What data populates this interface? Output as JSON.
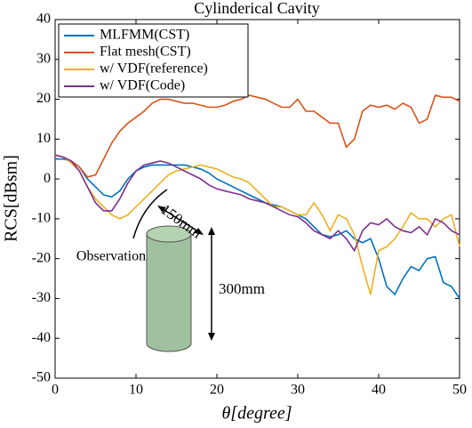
{
  "chart_data": {
    "type": "line",
    "title": "Cylinderical Cavity",
    "x_label": "θ[degree]",
    "y_label": "RCS[dBsm]",
    "x": [
      0,
      1,
      2,
      3,
      4,
      5,
      6,
      7,
      8,
      9,
      10,
      11,
      12,
      13,
      14,
      15,
      16,
      17,
      18,
      19,
      20,
      21,
      22,
      23,
      24,
      25,
      26,
      27,
      28,
      29,
      30,
      31,
      32,
      33,
      34,
      35,
      36,
      37,
      38,
      39,
      40,
      41,
      42,
      43,
      44,
      45,
      46,
      47,
      48,
      49,
      50
    ],
    "xlim": [
      0,
      50
    ],
    "xticks": [
      0,
      10,
      20,
      30,
      40,
      50
    ],
    "ylim": [
      -50,
      40
    ],
    "yticks": [
      -50,
      -40,
      -30,
      -20,
      -10,
      0,
      10,
      20,
      30,
      40
    ],
    "grid": false,
    "legend": "upper-left",
    "series": [
      {
        "name": "MLFMM(CST)",
        "color": "#0072bd",
        "values": [
          5,
          5,
          4.5,
          3,
          0,
          -2,
          -4,
          -4.5,
          -3,
          0,
          2,
          3,
          3.5,
          3.5,
          3.5,
          3.5,
          3.5,
          3,
          2.5,
          1.5,
          0,
          -1,
          -2,
          -3,
          -4,
          -5,
          -6,
          -6.5,
          -7,
          -8,
          -9,
          -10,
          -12,
          -14,
          -14.5,
          -14,
          -13,
          -15,
          -16,
          -15,
          -20,
          -27,
          -29,
          -25,
          -22,
          -23,
          -20,
          -19.5,
          -26,
          -27,
          -30
        ]
      },
      {
        "name": "Flat mesh(CST)",
        "color": "#d95319",
        "values": [
          6,
          5.5,
          4.5,
          3,
          0.5,
          1,
          5,
          9,
          12,
          14,
          15.5,
          17,
          19,
          20,
          20,
          19.5,
          19,
          19,
          18.5,
          18,
          18,
          18.5,
          19.5,
          20,
          21,
          20.5,
          20,
          19,
          18,
          18,
          20,
          17,
          17,
          15.5,
          14,
          14,
          8,
          10,
          17,
          18.5,
          18,
          18.5,
          17.5,
          19,
          18,
          14,
          15,
          21,
          20.5,
          20.5,
          19.5
        ]
      },
      {
        "name": "w/ VDF(reference)",
        "color": "#edb120",
        "values": [
          6,
          5.5,
          4,
          2,
          -2,
          -5,
          -7,
          -9,
          -10,
          -9,
          -7,
          -5,
          -3,
          -1,
          1,
          2,
          2.5,
          3,
          3.5,
          3,
          2.5,
          1.5,
          0.5,
          0,
          -1,
          -3,
          -5,
          -7,
          -7,
          -8,
          -9,
          -9,
          -6,
          -9,
          -13,
          -9,
          -10,
          -14,
          -22,
          -29,
          -18,
          -17,
          -15,
          -12,
          -8.5,
          -10,
          -10,
          -12,
          -10,
          -9,
          -17
        ]
      },
      {
        "name": "w/ VDF(Code)",
        "color": "#7e2f8e",
        "values": [
          6,
          5.5,
          4.5,
          2,
          -2,
          -6,
          -8,
          -8,
          -5,
          -1,
          2,
          3.5,
          4,
          4.5,
          4,
          3,
          2,
          1,
          0,
          -1.5,
          -2.5,
          -3,
          -3.5,
          -4,
          -5,
          -5.5,
          -6,
          -7,
          -8,
          -9,
          -9.5,
          -11,
          -13,
          -14,
          -15,
          -13,
          -15,
          -18,
          -13,
          -11,
          -11.5,
          -10,
          -12,
          -13,
          -13.5,
          -12,
          -14,
          -10,
          -11,
          -13,
          -14
        ]
      }
    ],
    "annotations": [
      "150mm",
      "Observation",
      "300mm"
    ]
  }
}
